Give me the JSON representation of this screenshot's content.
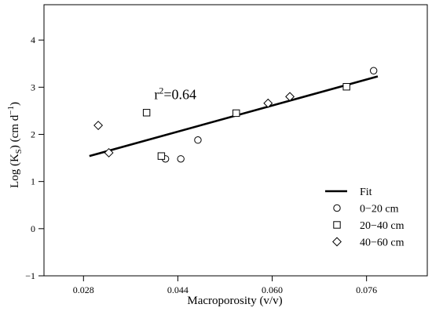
{
  "chart_data": {
    "type": "scatter",
    "xlabel": "Macroporosity (v/v)",
    "ylabel_main": "Log (K",
    "ylabel_sub": "S",
    "ylabel_units": ") (cm d",
    "ylabel_sup": "−1",
    "ylabel_close": ")",
    "xlim": [
      0.0213,
      0.0863
    ],
    "ylim": [
      -1.0,
      4.75
    ],
    "x_ticks": [
      0.028,
      0.044,
      0.06,
      0.076
    ],
    "x_tick_labels": [
      "0.028",
      "0.044",
      "0.060",
      "0.076"
    ],
    "y_ticks": [
      -1,
      0,
      1,
      2,
      3,
      4
    ],
    "y_tick_labels": [
      "−1",
      "0",
      "1",
      "2",
      "3",
      "4"
    ],
    "annotation": {
      "base": "r",
      "sup": "2",
      "rest": "=0.64",
      "x": 0.04,
      "y": 2.85
    },
    "fit": {
      "name": "Fit",
      "x": [
        0.029,
        0.0779
      ],
      "y": [
        1.54,
        3.23
      ]
    },
    "series": [
      {
        "name": "0−20 cm",
        "marker": "circle",
        "points": [
          [
            0.0419,
            1.48
          ],
          [
            0.0445,
            1.48
          ],
          [
            0.0474,
            1.88
          ],
          [
            0.0772,
            3.35
          ]
        ]
      },
      {
        "name": "20−40 cm",
        "marker": "square",
        "points": [
          [
            0.0387,
            2.46
          ],
          [
            0.0412,
            1.54
          ],
          [
            0.0539,
            2.45
          ],
          [
            0.0726,
            3.01
          ]
        ]
      },
      {
        "name": "40−60 cm",
        "marker": "diamond",
        "points": [
          [
            0.0305,
            2.19
          ],
          [
            0.0323,
            1.61
          ],
          [
            0.0593,
            2.66
          ],
          [
            0.063,
            2.8
          ]
        ]
      }
    ],
    "legend_position": "bottom-right"
  }
}
